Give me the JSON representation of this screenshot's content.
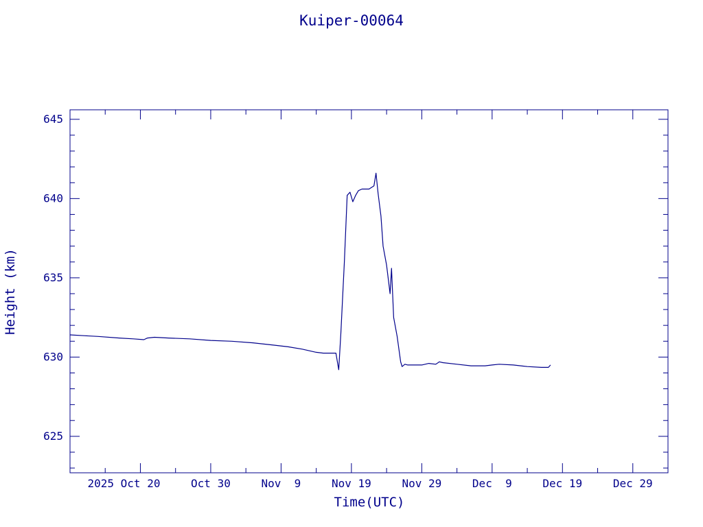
{
  "chart_data": {
    "type": "line",
    "title": "Kuiper-00064",
    "xlabel": "Time(UTC)",
    "ylabel": "Height (km)",
    "x_start": "2025-10-10",
    "x_end": "2026-01-03",
    "xlim_days": [
      0,
      85
    ],
    "ylim": [
      622.7,
      645.6
    ],
    "color": "#00008b",
    "grid": false,
    "y_ticks": [
      {
        "value": 625,
        "label": "625"
      },
      {
        "value": 630,
        "label": "630"
      },
      {
        "value": 635,
        "label": "635"
      },
      {
        "value": 640,
        "label": "640"
      },
      {
        "value": 645,
        "label": "645"
      }
    ],
    "x_ticks": [
      {
        "date": "2025-10-20",
        "label": "2025 Oct 20"
      },
      {
        "date": "2025-10-30",
        "label": "Oct 30"
      },
      {
        "date": "2025-11-09",
        "label": "Nov  9"
      },
      {
        "date": "2025-11-19",
        "label": "Nov 19"
      },
      {
        "date": "2025-11-29",
        "label": "Nov 29"
      },
      {
        "date": "2025-12-09",
        "label": "Dec  9"
      },
      {
        "date": "2025-12-19",
        "label": "Dec 19"
      },
      {
        "date": "2025-12-29",
        "label": "Dec 29"
      }
    ],
    "series": [
      {
        "x": [
          "2025-10-10",
          "2025-10-12",
          "2025-10-14",
          "2025-10-17",
          "2025-10-19",
          "2025-10-20.5",
          "2025-10-21",
          "2025-10-22",
          "2025-10-24",
          "2025-10-27",
          "2025-10-30",
          "2025-11-02",
          "2025-11-05",
          "2025-11-08",
          "2025-11-10",
          "2025-11-12",
          "2025-11-14",
          "2025-11-15",
          "2025-11-16.8",
          "2025-11-17.2",
          "2025-11-17.5",
          "2025-11-18",
          "2025-11-18.4",
          "2025-11-18.8",
          "2025-11-19.2",
          "2025-11-19.6",
          "2025-11-20",
          "2025-11-20.5",
          "2025-11-21.5",
          "2025-11-22.2",
          "2025-11-22.5",
          "2025-11-22.8",
          "2025-11-23.2",
          "2025-11-23.5",
          "2025-11-24",
          "2025-11-24.5",
          "2025-11-24.7",
          "2025-11-25",
          "2025-11-25.5",
          "2025-11-26",
          "2025-11-26.2",
          "2025-11-26.6",
          "2025-11-27",
          "2025-11-28",
          "2025-11-29",
          "2025-11-30",
          "2025-12-01",
          "2025-12-01.5",
          "2025-12-02",
          "2025-12-04",
          "2025-12-06",
          "2025-12-08",
          "2025-12-09",
          "2025-12-10",
          "2025-12-12",
          "2025-12-14",
          "2025-12-16",
          "2025-12-17",
          "2025-12-17.3"
        ],
        "y": [
          631.4,
          631.35,
          631.3,
          631.2,
          631.15,
          631.1,
          631.2,
          631.25,
          631.2,
          631.15,
          631.05,
          631.0,
          630.9,
          630.75,
          630.65,
          630.5,
          630.3,
          630.25,
          630.25,
          629.2,
          631.5,
          636.0,
          640.2,
          640.4,
          639.8,
          640.2,
          640.5,
          640.6,
          640.6,
          640.8,
          641.6,
          640.3,
          638.9,
          637.0,
          635.8,
          634.0,
          635.6,
          632.5,
          631.3,
          629.7,
          629.4,
          629.55,
          629.5,
          629.5,
          629.5,
          629.6,
          629.55,
          629.7,
          629.65,
          629.55,
          629.45,
          629.45,
          629.5,
          629.55,
          629.5,
          629.4,
          629.35,
          629.35,
          629.5
        ]
      }
    ]
  }
}
